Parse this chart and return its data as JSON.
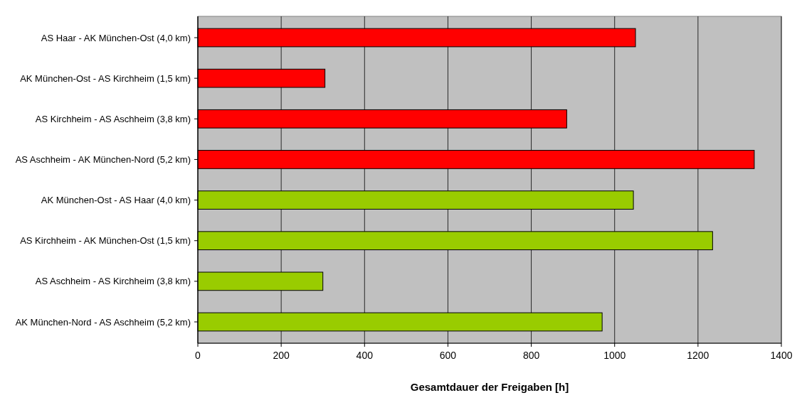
{
  "chart_data": {
    "type": "bar",
    "orientation": "horizontal",
    "categories": [
      "AS Haar - AK München-Ost (4,0 km)",
      "AK München-Ost - AS Kirchheim (1,5 km)",
      "AS Kirchheim - AS Aschheim (3,8 km)",
      "AS Aschheim - AK München-Nord (5,2 km)",
      "AK München-Ost - AS Haar (4,0 km)",
      "AS Kirchheim - AK München-Ost (1,5 km)",
      "AS Aschheim - AS Kirchheim (3,8 km)",
      "AK München-Nord - AS Aschheim (5,2 km)"
    ],
    "values": [
      1050,
      305,
      885,
      1335,
      1045,
      1235,
      300,
      970
    ],
    "colors": [
      "#ff0000",
      "#ff0000",
      "#ff0000",
      "#ff0000",
      "#99cc00",
      "#99cc00",
      "#99cc00",
      "#99cc00"
    ],
    "xlabel": "Gesamtdauer der Freigaben [h]",
    "xlim": [
      0,
      1400
    ],
    "xticks": [
      0,
      200,
      400,
      600,
      800,
      1000,
      1200,
      1400
    ],
    "grid": "x"
  }
}
